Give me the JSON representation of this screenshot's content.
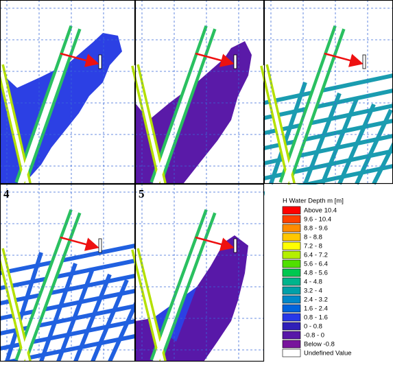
{
  "panels": [
    {
      "label": null
    },
    {
      "label": null
    },
    {
      "label": null
    },
    {
      "label": "4"
    },
    {
      "label": "5"
    }
  ],
  "legend": {
    "title": "H Water Depth m [m]",
    "items": [
      {
        "label": "Above 10.4",
        "color": "#ff0000"
      },
      {
        "label": "9.6 - 10.4",
        "color": "#ff4000"
      },
      {
        "label": "8.8 -  9.6",
        "color": "#ff8c00"
      },
      {
        "label": "8 -  8.8",
        "color": "#ffc800"
      },
      {
        "label": "7.2 -  8",
        "color": "#ffff00"
      },
      {
        "label": "6.4 -  7.2",
        "color": "#b4f000"
      },
      {
        "label": "5.6 -  6.4",
        "color": "#50e000"
      },
      {
        "label": "4.8 -  5.6",
        "color": "#00c850"
      },
      {
        "label": "4 -  4.8",
        "color": "#00b48c"
      },
      {
        "label": "3.2 -  4",
        "color": "#00a0a8"
      },
      {
        "label": "2.4 -  3.2",
        "color": "#0088c8"
      },
      {
        "label": "1.6 -  2.4",
        "color": "#0064dc"
      },
      {
        "label": "0.8 -  1.6",
        "color": "#2838e8"
      },
      {
        "label": "0 -  0.8",
        "color": "#3020b8"
      },
      {
        "label": "-0.8 -  0",
        "color": "#5818a8"
      },
      {
        "label": "Below -0.8",
        "color": "#78149c"
      },
      {
        "label": "Undefined Value",
        "color": "#ffffff"
      }
    ]
  }
}
